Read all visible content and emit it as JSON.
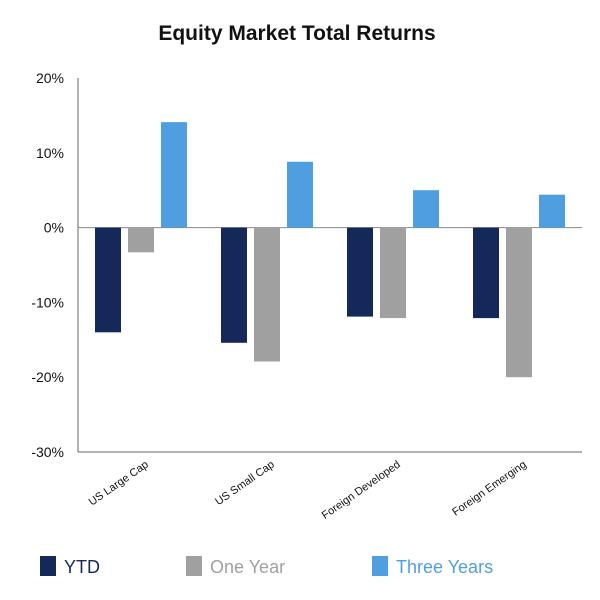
{
  "chart_data": {
    "type": "bar",
    "title": "Equity Market Total Returns",
    "xlabel": "",
    "ylabel": "",
    "categories": [
      "US Large Cap",
      "US Small Cap",
      "Foreign Developed",
      "Foreign Emerging"
    ],
    "series": [
      {
        "name": "YTD",
        "color": "#14285a",
        "values": [
          -14.0,
          -15.4,
          -11.9,
          -12.1
        ]
      },
      {
        "name": "One Year",
        "color": "#a0a0a0",
        "values": [
          -3.3,
          -17.9,
          -12.1,
          -20.0
        ]
      },
      {
        "name": "Three Years",
        "color": "#4f9fe0",
        "values": [
          14.1,
          8.8,
          5.0,
          4.4
        ]
      }
    ],
    "ylim": [
      -30,
      20
    ],
    "yticks": [
      20,
      10,
      0,
      -10,
      -20,
      -30
    ],
    "ytick_labels": [
      "20%",
      "10%",
      "0%",
      "-10%",
      "-20%",
      "-30%"
    ],
    "grid": false,
    "legend_position": "bottom"
  }
}
